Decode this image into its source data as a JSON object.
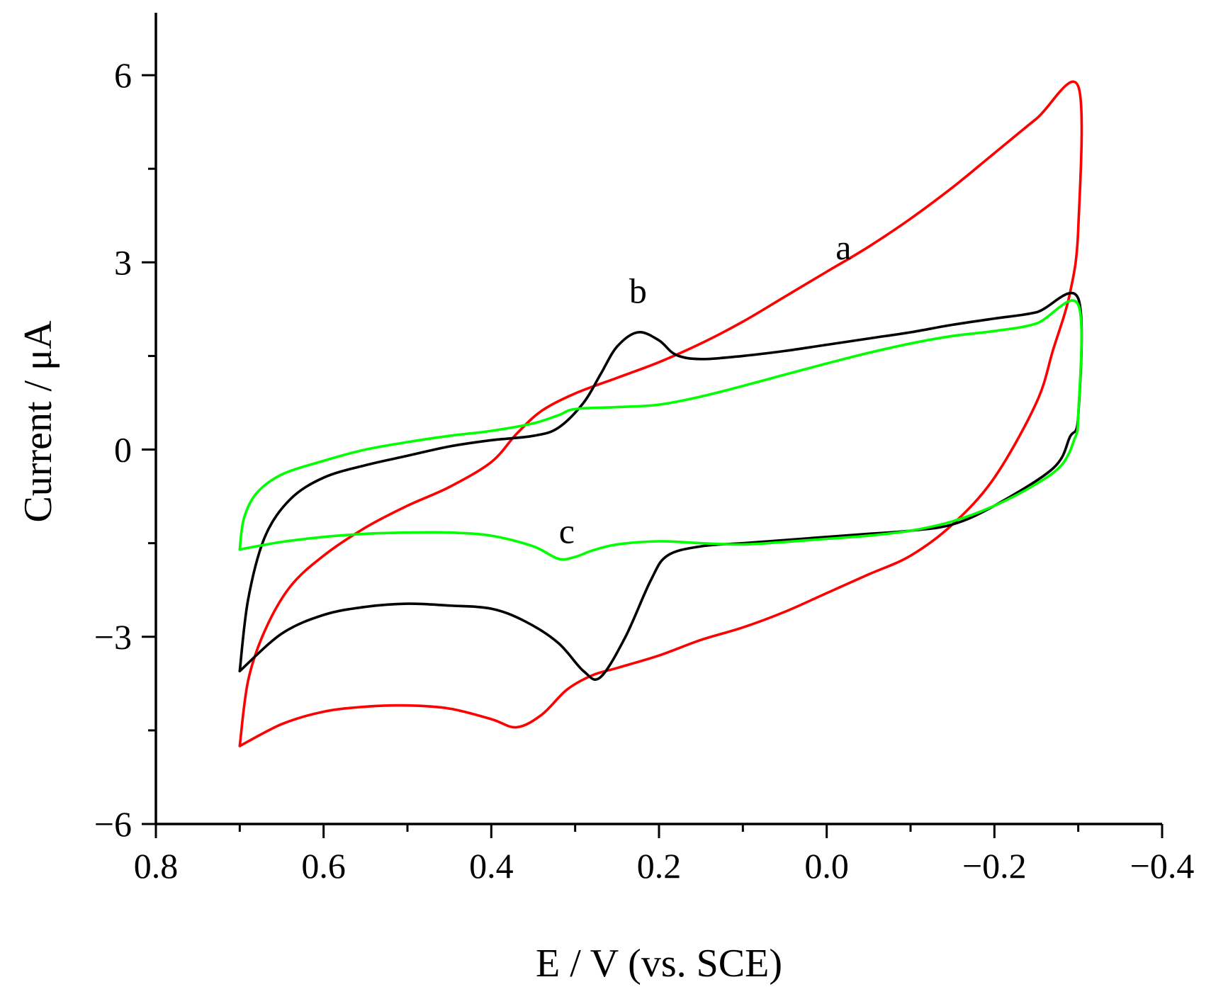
{
  "chart_data": {
    "type": "line",
    "title": "",
    "xlabel": "E / V (vs. SCE)",
    "ylabel": "Current / μA",
    "xlim": [
      0.8,
      -0.4
    ],
    "ylim": [
      -6,
      7
    ],
    "x_ticks": [
      0.8,
      0.6,
      0.4,
      0.2,
      0.0,
      -0.2,
      -0.4
    ],
    "x_tick_labels": [
      "0.8",
      "0.6",
      "0.4",
      "0.2",
      "0.0",
      "−0.2",
      "−0.4"
    ],
    "y_ticks": [
      6,
      3,
      0,
      -3,
      -6
    ],
    "y_tick_labels": [
      "6",
      "3",
      "0",
      "−3",
      "−6"
    ],
    "grid": false,
    "series": [
      {
        "name": "a",
        "color": "#ff0000",
        "label_text": "a",
        "label_at": [
          -0.02,
          3.05
        ],
        "points": [
          [
            0.7,
            -4.75
          ],
          [
            0.69,
            -3.7
          ],
          [
            0.67,
            -2.9
          ],
          [
            0.64,
            -2.2
          ],
          [
            0.6,
            -1.7
          ],
          [
            0.55,
            -1.25
          ],
          [
            0.5,
            -0.9
          ],
          [
            0.45,
            -0.6
          ],
          [
            0.4,
            -0.2
          ],
          [
            0.37,
            0.25
          ],
          [
            0.34,
            0.62
          ],
          [
            0.3,
            0.9
          ],
          [
            0.25,
            1.15
          ],
          [
            0.2,
            1.4
          ],
          [
            0.15,
            1.7
          ],
          [
            0.1,
            2.05
          ],
          [
            0.05,
            2.45
          ],
          [
            0.0,
            2.85
          ],
          [
            -0.05,
            3.25
          ],
          [
            -0.1,
            3.7
          ],
          [
            -0.15,
            4.2
          ],
          [
            -0.2,
            4.75
          ],
          [
            -0.25,
            5.3
          ],
          [
            -0.3,
            5.82
          ],
          [
            -0.3,
            3.55
          ],
          [
            -0.29,
            2.5
          ],
          [
            -0.27,
            1.6
          ],
          [
            -0.25,
            0.75
          ],
          [
            -0.2,
            -0.45
          ],
          [
            -0.15,
            -1.2
          ],
          [
            -0.1,
            -1.7
          ],
          [
            -0.05,
            -2.0
          ],
          [
            0.0,
            -2.3
          ],
          [
            0.05,
            -2.6
          ],
          [
            0.1,
            -2.85
          ],
          [
            0.15,
            -3.05
          ],
          [
            0.2,
            -3.3
          ],
          [
            0.25,
            -3.5
          ],
          [
            0.28,
            -3.62
          ],
          [
            0.31,
            -3.85
          ],
          [
            0.34,
            -4.25
          ],
          [
            0.37,
            -4.45
          ],
          [
            0.4,
            -4.32
          ],
          [
            0.45,
            -4.15
          ],
          [
            0.5,
            -4.1
          ],
          [
            0.55,
            -4.12
          ],
          [
            0.6,
            -4.2
          ],
          [
            0.65,
            -4.4
          ],
          [
            0.7,
            -4.75
          ]
        ]
      },
      {
        "name": "b",
        "color": "#000000",
        "label_text": "b",
        "label_at": [
          0.225,
          2.35
        ],
        "points": [
          [
            0.7,
            -3.55
          ],
          [
            0.69,
            -2.4
          ],
          [
            0.67,
            -1.4
          ],
          [
            0.64,
            -0.8
          ],
          [
            0.6,
            -0.45
          ],
          [
            0.55,
            -0.25
          ],
          [
            0.5,
            -0.1
          ],
          [
            0.45,
            0.05
          ],
          [
            0.4,
            0.15
          ],
          [
            0.35,
            0.22
          ],
          [
            0.32,
            0.35
          ],
          [
            0.29,
            0.75
          ],
          [
            0.27,
            1.2
          ],
          [
            0.25,
            1.65
          ],
          [
            0.225,
            1.88
          ],
          [
            0.2,
            1.75
          ],
          [
            0.18,
            1.52
          ],
          [
            0.15,
            1.45
          ],
          [
            0.1,
            1.5
          ],
          [
            0.05,
            1.58
          ],
          [
            0.0,
            1.68
          ],
          [
            -0.05,
            1.78
          ],
          [
            -0.1,
            1.88
          ],
          [
            -0.15,
            2.0
          ],
          [
            -0.2,
            2.1
          ],
          [
            -0.25,
            2.2
          ],
          [
            -0.3,
            2.42
          ],
          [
            -0.3,
            0.55
          ],
          [
            -0.29,
            0.2
          ],
          [
            -0.27,
            -0.3
          ],
          [
            -0.2,
            -0.9
          ],
          [
            -0.15,
            -1.2
          ],
          [
            -0.1,
            -1.3
          ],
          [
            -0.05,
            -1.35
          ],
          [
            0.0,
            -1.4
          ],
          [
            0.05,
            -1.45
          ],
          [
            0.1,
            -1.5
          ],
          [
            0.15,
            -1.55
          ],
          [
            0.19,
            -1.7
          ],
          [
            0.21,
            -2.1
          ],
          [
            0.24,
            -3.0
          ],
          [
            0.27,
            -3.65
          ],
          [
            0.29,
            -3.55
          ],
          [
            0.32,
            -3.1
          ],
          [
            0.36,
            -2.75
          ],
          [
            0.4,
            -2.55
          ],
          [
            0.45,
            -2.5
          ],
          [
            0.5,
            -2.47
          ],
          [
            0.55,
            -2.52
          ],
          [
            0.6,
            -2.65
          ],
          [
            0.65,
            -2.95
          ],
          [
            0.7,
            -3.55
          ]
        ]
      },
      {
        "name": "c",
        "color": "#00ff00",
        "label_text": "c",
        "label_at": [
          0.31,
          -1.5
        ],
        "points": [
          [
            0.7,
            -1.6
          ],
          [
            0.695,
            -1.1
          ],
          [
            0.68,
            -0.7
          ],
          [
            0.65,
            -0.4
          ],
          [
            0.6,
            -0.18
          ],
          [
            0.55,
            0.0
          ],
          [
            0.5,
            0.12
          ],
          [
            0.45,
            0.22
          ],
          [
            0.4,
            0.3
          ],
          [
            0.35,
            0.42
          ],
          [
            0.32,
            0.55
          ],
          [
            0.3,
            0.65
          ],
          [
            0.25,
            0.68
          ],
          [
            0.2,
            0.72
          ],
          [
            0.15,
            0.85
          ],
          [
            0.1,
            1.02
          ],
          [
            0.05,
            1.2
          ],
          [
            0.0,
            1.38
          ],
          [
            -0.05,
            1.55
          ],
          [
            -0.1,
            1.7
          ],
          [
            -0.15,
            1.82
          ],
          [
            -0.2,
            1.9
          ],
          [
            -0.25,
            2.02
          ],
          [
            -0.3,
            2.32
          ],
          [
            -0.3,
            0.55
          ],
          [
            -0.295,
            0.15
          ],
          [
            -0.28,
            -0.25
          ],
          [
            -0.25,
            -0.55
          ],
          [
            -0.2,
            -0.9
          ],
          [
            -0.15,
            -1.15
          ],
          [
            -0.1,
            -1.3
          ],
          [
            -0.05,
            -1.38
          ],
          [
            0.0,
            -1.43
          ],
          [
            0.05,
            -1.48
          ],
          [
            0.1,
            -1.52
          ],
          [
            0.15,
            -1.5
          ],
          [
            0.2,
            -1.47
          ],
          [
            0.25,
            -1.52
          ],
          [
            0.28,
            -1.62
          ],
          [
            0.3,
            -1.72
          ],
          [
            0.32,
            -1.75
          ],
          [
            0.35,
            -1.55
          ],
          [
            0.4,
            -1.38
          ],
          [
            0.45,
            -1.33
          ],
          [
            0.5,
            -1.33
          ],
          [
            0.55,
            -1.35
          ],
          [
            0.6,
            -1.4
          ],
          [
            0.65,
            -1.48
          ],
          [
            0.7,
            -1.6
          ]
        ]
      }
    ]
  }
}
